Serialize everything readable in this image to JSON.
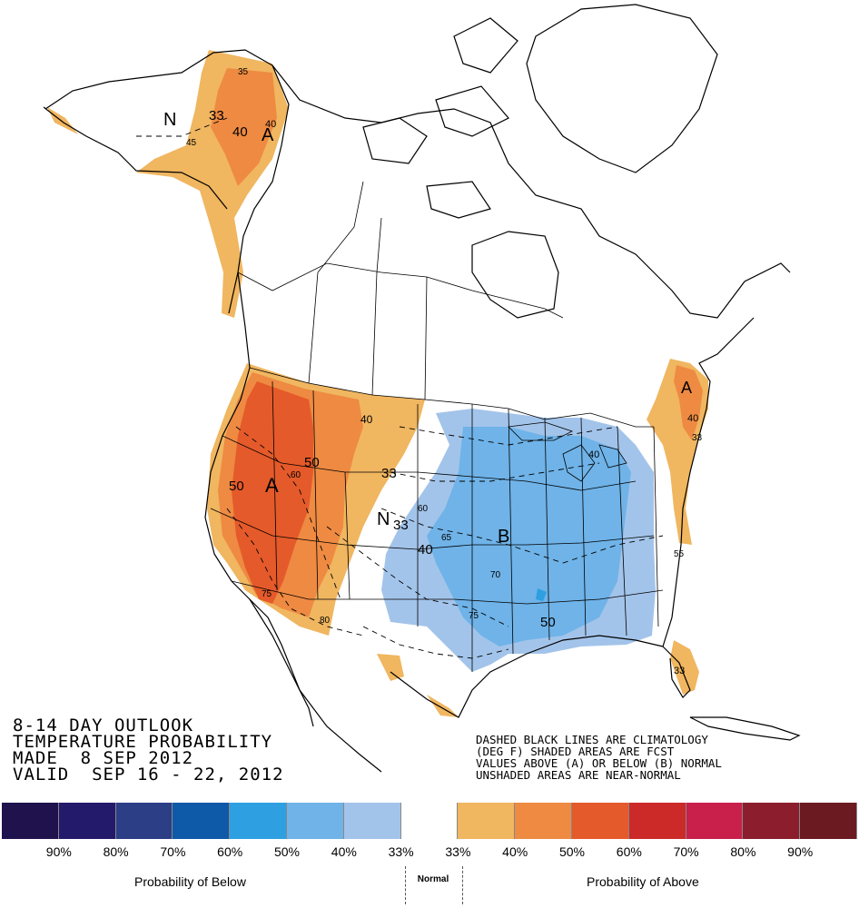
{
  "header": {
    "line1": "8-14 DAY OUTLOOK",
    "line2": "TEMPERATURE PROBABILITY",
    "line3": "MADE  8 SEP 2012",
    "line4": "VALID  SEP 16 - 22, 2012"
  },
  "notes": {
    "line1": "DASHED BLACK LINES ARE CLIMATOLOGY",
    "line2": "(DEG F) SHADED AREAS ARE FCST",
    "line3": "VALUES ABOVE (A) OR BELOW (B) NORMAL",
    "line4": "UNSHADED AREAS ARE NEAR-NORMAL"
  },
  "map_labels": {
    "alaska_n": "N",
    "alaska_a": "A",
    "alaska_33": "33",
    "alaska_40a": "40",
    "alaska_40b": "40",
    "alaska_35": "35",
    "alaska_45": "45",
    "west_a": "A",
    "west_50a": "50",
    "west_50b": "50",
    "west_40": "40",
    "west_33": "33",
    "west_60": "60",
    "west_75": "75",
    "west_80": "80",
    "plains_n": "N",
    "plains_33": "33",
    "plains_40": "40",
    "plains_65": "65",
    "plains_60": "60",
    "central_b": "B",
    "central_50": "50",
    "central_70": "70",
    "central_75": "75",
    "northeast_a": "A",
    "northeast_40": "40",
    "northeast_55": "55",
    "southeast_33a": "33",
    "southeast_33b": "33",
    "greatlakes_40": "40"
  },
  "legend": {
    "ticks": [
      "90%",
      "80%",
      "70%",
      "60%",
      "50%",
      "40%",
      "33%",
      "33%",
      "40%",
      "50%",
      "60%",
      "70%",
      "80%",
      "90%"
    ],
    "below_label": "Probability of Below",
    "normal_label": "Normal",
    "above_label": "Probability of Above",
    "colors": [
      "#20124d",
      "#241a6b",
      "#2b3e86",
      "#0e59a8",
      "#2e9fe0",
      "#6fb3e8",
      "#a3c4ea",
      "#ffffff",
      "#f0b660",
      "#ee8a42",
      "#e55a2a",
      "#cc2a28",
      "#c8204a",
      "#8b1d2d",
      "#6b1a22"
    ]
  }
}
